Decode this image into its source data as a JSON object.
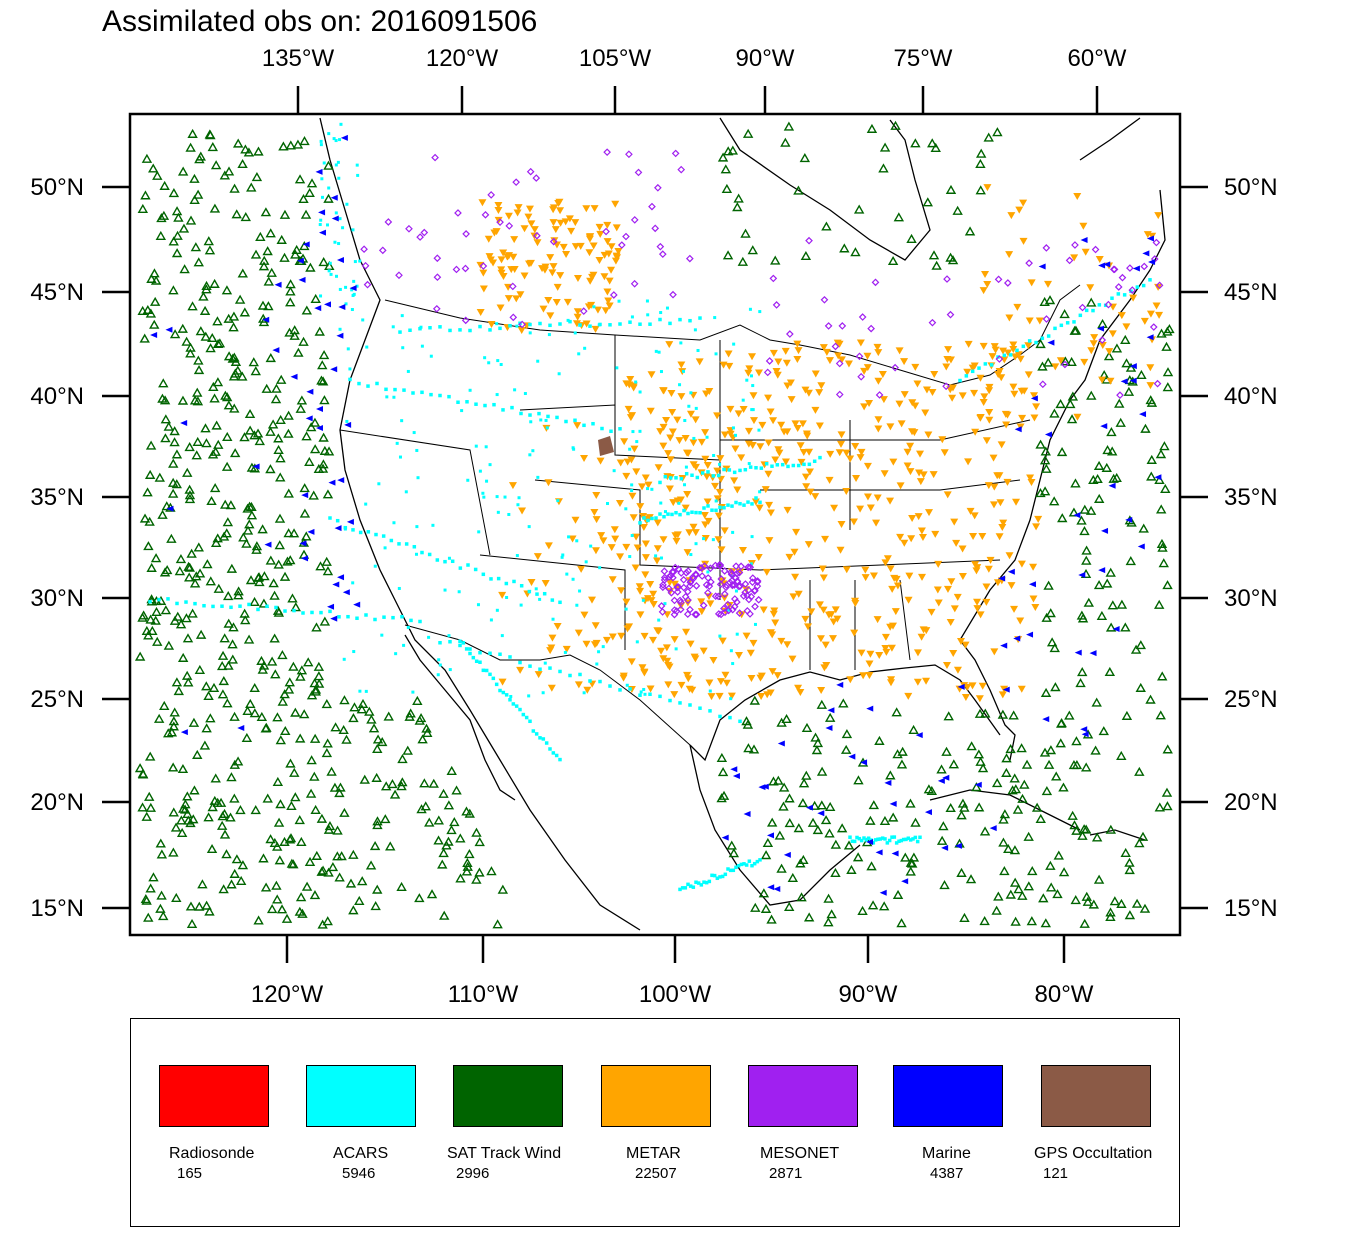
{
  "title": "Assimilated obs on: 2016091506",
  "map": {
    "top_lon_labels": [
      "135°W",
      "120°W",
      "105°W",
      "90°W",
      "75°W",
      "60°W"
    ],
    "bottom_lon_labels": [
      "120°W",
      "110°W",
      "100°W",
      "90°W",
      "80°W"
    ],
    "lat_labels": [
      "50°N",
      "45°N",
      "40°N",
      "35°N",
      "30°N",
      "25°N",
      "20°N",
      "15°N"
    ]
  },
  "legend": {
    "items": [
      {
        "label": "Radiosonde",
        "count": "165",
        "color": "#ff0000"
      },
      {
        "label": "ACARS",
        "count": "5946",
        "color": "#00ffff"
      },
      {
        "label": "SAT Track Wind",
        "count": "2996",
        "color": "#006400"
      },
      {
        "label": "METAR",
        "count": "22507",
        "color": "#ffa500"
      },
      {
        "label": "MESONET",
        "count": "2871",
        "color": "#a020f0"
      },
      {
        "label": "Marine",
        "count": "4387",
        "color": "#0000ff"
      },
      {
        "label": "GPS Occultation",
        "count": "121",
        "color": "#8b5a46"
      }
    ]
  }
}
